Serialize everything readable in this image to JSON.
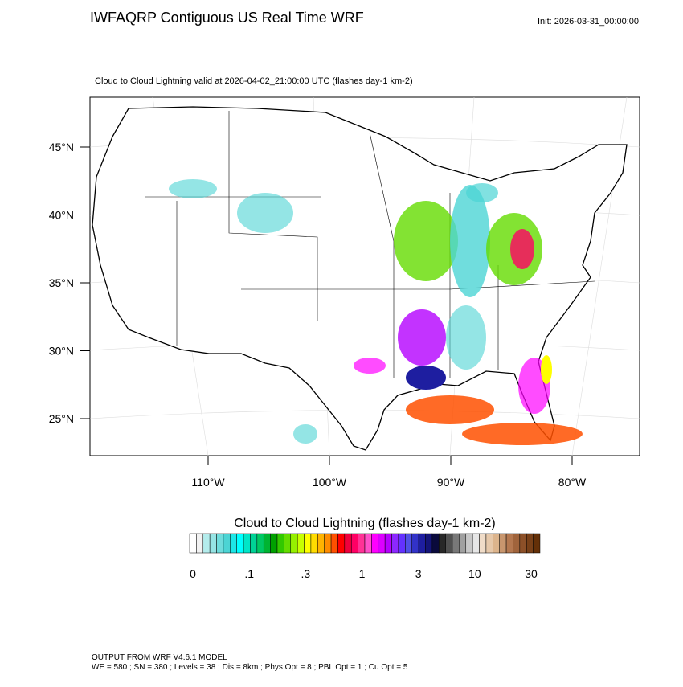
{
  "header": {
    "title": "IWFAQRP Contiguous US Real Time WRF",
    "init": "Init: 2026-03-31_00:00:00"
  },
  "map": {
    "subtitle": "Cloud to Cloud Lightning valid at 2026-04-02_21:00:00 UTC   (flashes day-1 km-2)",
    "lat_labels": [
      "45°N",
      "40°N",
      "35°N",
      "30°N",
      "25°N"
    ],
    "lon_labels": [
      "110°W",
      "100°W",
      "90°W",
      "80°W"
    ]
  },
  "colorbar": {
    "title": "Cloud to Cloud Lightning  (flashes day-1 km-2)",
    "labels": [
      "0",
      ".1",
      ".3",
      "1",
      "3",
      "10",
      "30"
    ],
    "colors": [
      "#ffffff",
      "#f2f2f2",
      "#b4ecec",
      "#96e4e4",
      "#6fdcdc",
      "#4cd4d4",
      "#1ee6e6",
      "#00ffff",
      "#00e6c8",
      "#00d296",
      "#00c864",
      "#00b432",
      "#00a000",
      "#32c800",
      "#64dc00",
      "#96f000",
      "#c8ff00",
      "#ffff00",
      "#ffdc00",
      "#ffb400",
      "#ff8c00",
      "#ff5000",
      "#ff0000",
      "#f0003c",
      "#ff0064",
      "#ff3296",
      "#ff50c8",
      "#ff00ff",
      "#dc00ff",
      "#b400ff",
      "#8c28ff",
      "#6432ff",
      "#5050e6",
      "#3232c8",
      "#1e1ea0",
      "#141478",
      "#0a0a3c",
      "#282828",
      "#505050",
      "#787878",
      "#a0a0a0",
      "#c8c8c8",
      "#e6e6e6",
      "#f0dcc8",
      "#e6c8aa",
      "#dcb48c",
      "#c8966e",
      "#b47850",
      "#a0643c",
      "#8c5028",
      "#784018",
      "#643008"
    ]
  },
  "footer": {
    "line1": "OUTPUT FROM WRF V4.6.1 MODEL",
    "line2": "WE = 580 ; SN = 380 ; Levels = 38 ; Dis = 8km ; Phys Opt = 8 ; PBL Opt = 1 ; Cu Opt = 5"
  }
}
